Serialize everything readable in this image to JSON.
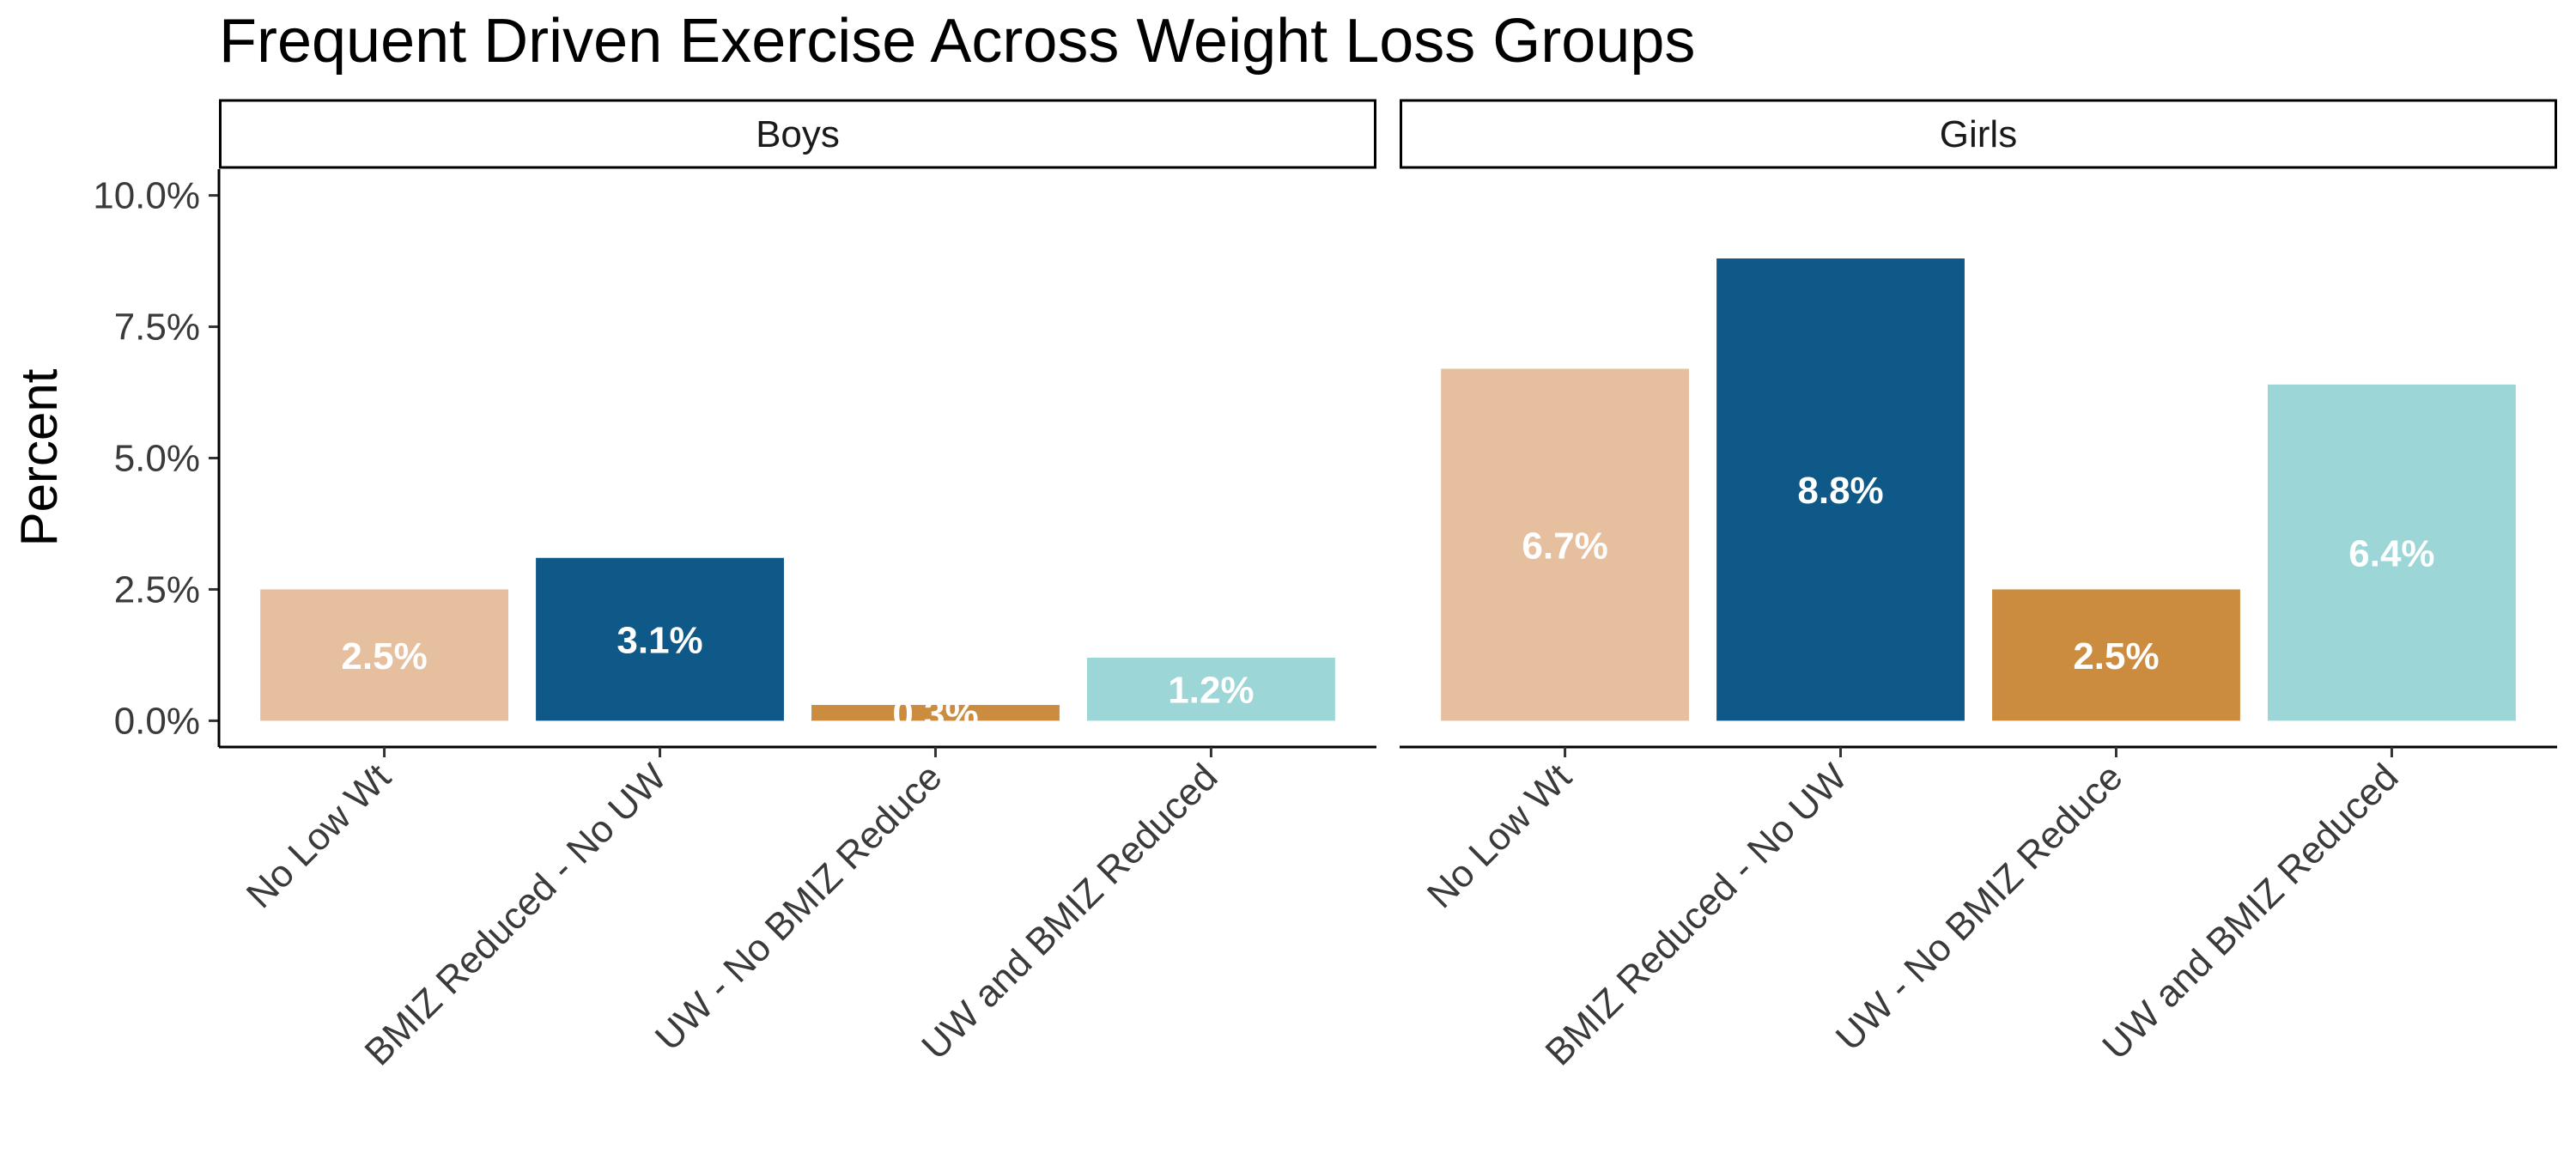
{
  "chart_data": {
    "type": "bar",
    "title": "Frequent Driven Exercise Across Weight Loss Groups",
    "ylabel": "Percent",
    "xlabel": "",
    "ylim": [
      -0.5,
      10.5
    ],
    "yticks": [
      0,
      2.5,
      5,
      7.5,
      10
    ],
    "ytick_labels": [
      "0.0%",
      "2.5%",
      "5.0%",
      "7.5%",
      "10.0%"
    ],
    "categories": [
      "No Low Wt",
      "BMIZ Reduced - No UW",
      "UW - No BMIZ Reduce",
      "UW and BMIZ Reduced"
    ],
    "colors": [
      "#E6BF9F",
      "#0F5989",
      "#CB8C40",
      "#9DD6D7"
    ],
    "label_color": "#FFFFFF",
    "grid": false,
    "legend": "none",
    "panels": [
      {
        "name": "Boys",
        "values": [
          2.5,
          3.1,
          0.3,
          1.2
        ],
        "labels": [
          "2.5%",
          "3.1%",
          "0.3%",
          "1.2%"
        ]
      },
      {
        "name": "Girls",
        "values": [
          6.7,
          8.8,
          2.5,
          6.4
        ],
        "labels": [
          "6.7%",
          "8.8%",
          "2.5%",
          "6.4%"
        ]
      }
    ]
  }
}
